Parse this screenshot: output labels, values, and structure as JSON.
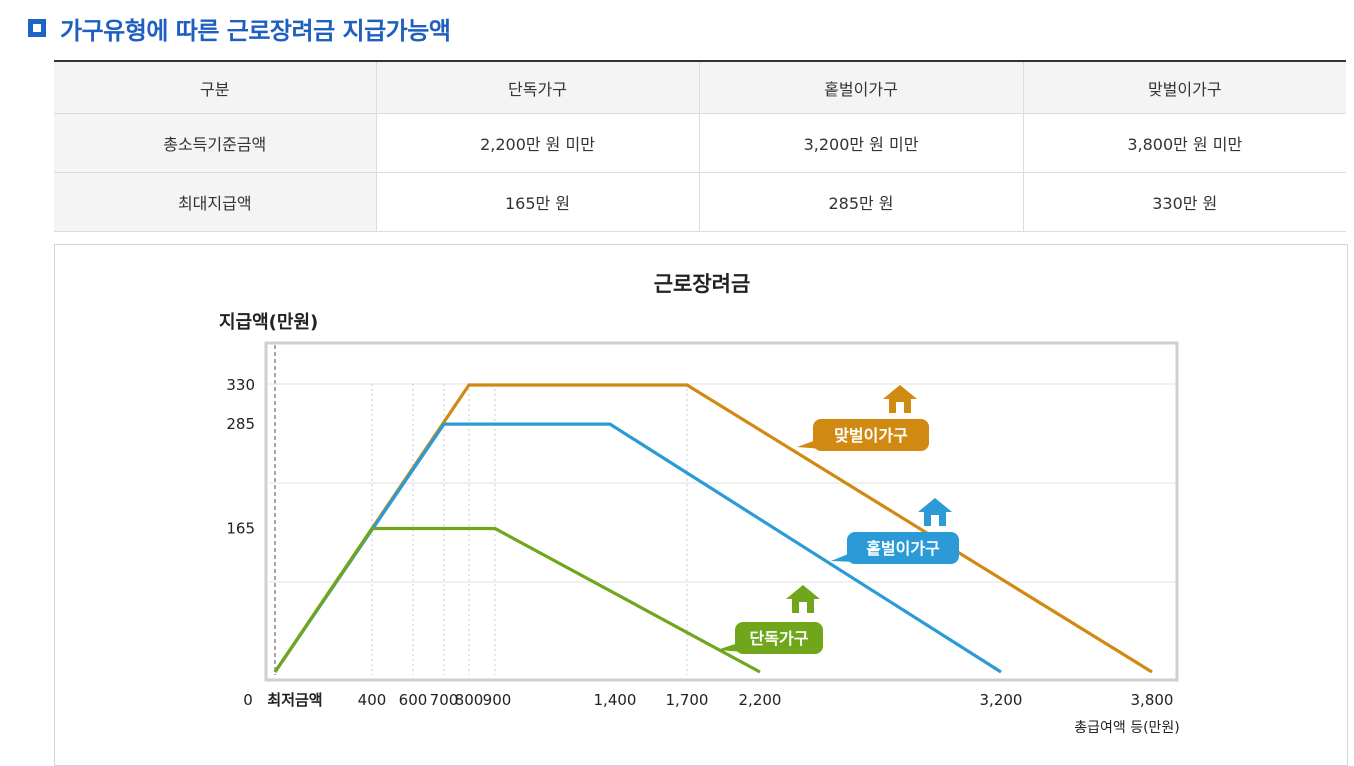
{
  "heading": {
    "title": "가구유형에 따른 근로장려금 지급가능액"
  },
  "table": {
    "headers": [
      "구분",
      "단독가구",
      "홑벌이가구",
      "맞벌이가구"
    ],
    "rows": [
      [
        "총소득기준금액",
        "2,200만 원 미만",
        "3,200만 원 미만",
        "3,800만 원 미만"
      ],
      [
        "최대지급액",
        "165만 원",
        "285만 원",
        "330만 원"
      ]
    ]
  },
  "chart_data": {
    "type": "line",
    "title": "근로장려금",
    "ylabel": "지급액(만원)",
    "xlabel": "총급여액 등(만원)",
    "x_ticks": [
      "0",
      "최저금액",
      "400",
      "600",
      "700",
      "800",
      "900",
      "1,400",
      "1,700",
      "2,200",
      "3,200",
      "3,800"
    ],
    "y_ticks": [
      "165",
      "285",
      "330"
    ],
    "series": [
      {
        "name": "단독가구",
        "color": "#6fa61c",
        "x": [
          0,
          400,
          900,
          2200
        ],
        "y": [
          0,
          165,
          165,
          0
        ]
      },
      {
        "name": "홑벌이가구",
        "color": "#2b9ad6",
        "x": [
          0,
          700,
          1400,
          3200
        ],
        "y": [
          0,
          285,
          285,
          0
        ]
      },
      {
        "name": "맞벌이가구",
        "color": "#d08a12",
        "x": [
          0,
          800,
          1700,
          3800
        ],
        "y": [
          0,
          330,
          330,
          0
        ]
      }
    ],
    "grid": true,
    "icons": [
      "house-icon"
    ]
  }
}
